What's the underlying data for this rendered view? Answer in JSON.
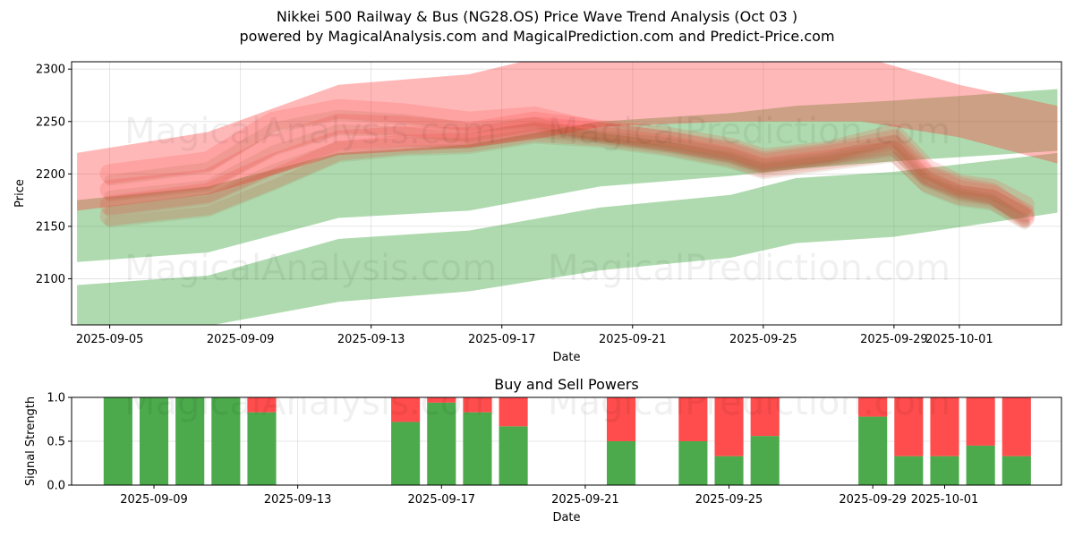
{
  "title": "Nikkei 500 Railway & Bus (NG28.OS) Price Wave Trend Analysis (Oct 03 )",
  "subtitle": "powered by MagicalAnalysis.com and MagicalPrediction.com and Predict-Price.com",
  "watermarks": [
    "MagicalAnalysis.com",
    "MagicalPrediction.com"
  ],
  "colors": {
    "bull": "#2e9e2e",
    "bear": "#ff3333",
    "buy_bar": "#4caa4c",
    "sell_bar": "#ff4c4c"
  },
  "chart_data": [
    {
      "type": "area",
      "xlabel": "Date",
      "ylabel": "Price",
      "ylim": [
        2056,
        2307
      ],
      "xlim": [
        "2025-09-03T20:00",
        "2025-10-04T03:00"
      ],
      "y_ticks": [
        2100,
        2150,
        2200,
        2250,
        2300
      ],
      "x_ticks": [
        "2025-09-05",
        "2025-09-09",
        "2025-09-13",
        "2025-09-17",
        "2025-09-21",
        "2025-09-25",
        "2025-09-29",
        "2025-10-01"
      ],
      "grid": true,
      "green_bands": [
        {
          "x": [
            "2025-09-04",
            "2025-09-08",
            "2025-09-12",
            "2025-09-16",
            "2025-09-20",
            "2025-09-24",
            "2025-09-26",
            "2025-09-29",
            "2025-10-04"
          ],
          "upper": [
            2175,
            2188,
            2220,
            2228,
            2250,
            2258,
            2265,
            2270,
            2281
          ],
          "lower": [
            2116,
            2125,
            2158,
            2165,
            2188,
            2198,
            2205,
            2212,
            2222
          ]
        },
        {
          "x": [
            "2025-09-04",
            "2025-09-08",
            "2025-09-12",
            "2025-09-16",
            "2025-09-20",
            "2025-09-24",
            "2025-09-26",
            "2025-09-29",
            "2025-10-04"
          ],
          "upper": [
            2094,
            2103,
            2138,
            2146,
            2168,
            2180,
            2196,
            2202,
            2220
          ],
          "lower": [
            2053,
            2055,
            2078,
            2088,
            2108,
            2120,
            2134,
            2140,
            2163
          ]
        }
      ],
      "red_bands": [
        {
          "x": [
            "2025-09-04",
            "2025-09-08",
            "2025-09-12",
            "2025-09-16",
            "2025-09-18",
            "2025-09-20",
            "2025-09-24",
            "2025-09-28",
            "2025-10-01",
            "2025-10-04"
          ],
          "upper": [
            2220,
            2240,
            2285,
            2295,
            2310,
            2312,
            2312,
            2312,
            2285,
            2265
          ],
          "lower": [
            2165,
            2180,
            2218,
            2225,
            2233,
            2245,
            2250,
            2250,
            2235,
            2210
          ]
        }
      ],
      "wave_lines": [
        {
          "x": [
            "2025-09-05",
            "2025-09-08",
            "2025-09-10",
            "2025-09-12",
            "2025-09-14",
            "2025-09-16",
            "2025-09-18",
            "2025-09-20",
            "2025-09-22",
            "2025-09-24",
            "2025-09-25",
            "2025-09-27",
            "2025-09-29",
            "2025-09-30",
            "2025-10-01",
            "2025-10-02",
            "2025-10-03"
          ],
          "y": [
            2200,
            2212,
            2250,
            2262,
            2258,
            2250,
            2255,
            2240,
            2232,
            2222,
            2212,
            2220,
            2233,
            2200,
            2188,
            2182,
            2160
          ]
        },
        {
          "x": [
            "2025-09-05",
            "2025-09-08",
            "2025-09-10",
            "2025-09-12",
            "2025-09-14",
            "2025-09-16",
            "2025-09-18",
            "2025-09-20",
            "2025-09-22",
            "2025-09-24",
            "2025-09-25",
            "2025-09-27",
            "2025-09-29",
            "2025-09-30",
            "2025-10-01",
            "2025-10-02",
            "2025-10-03"
          ],
          "y": [
            2185,
            2195,
            2228,
            2248,
            2246,
            2240,
            2250,
            2242,
            2236,
            2225,
            2215,
            2222,
            2238,
            2205,
            2190,
            2186,
            2170
          ]
        },
        {
          "x": [
            "2025-09-05",
            "2025-09-08",
            "2025-09-10",
            "2025-09-12",
            "2025-09-14",
            "2025-09-16",
            "2025-09-18",
            "2025-09-20",
            "2025-09-22",
            "2025-09-24",
            "2025-09-25",
            "2025-09-27",
            "2025-09-29",
            "2025-09-30",
            "2025-10-01",
            "2025-10-02",
            "2025-10-03"
          ],
          "y": [
            2170,
            2182,
            2210,
            2232,
            2236,
            2235,
            2245,
            2240,
            2232,
            2220,
            2210,
            2218,
            2228,
            2198,
            2185,
            2180,
            2163
          ]
        },
        {
          "x": [
            "2025-09-05",
            "2025-09-08",
            "2025-09-10",
            "2025-09-12",
            "2025-09-14",
            "2025-09-16",
            "2025-09-18",
            "2025-09-20",
            "2025-09-22",
            "2025-09-24",
            "2025-09-25",
            "2025-09-27",
            "2025-09-29",
            "2025-09-30",
            "2025-10-01",
            "2025-10-02",
            "2025-10-03"
          ],
          "y": [
            2160,
            2170,
            2195,
            2222,
            2228,
            2230,
            2240,
            2236,
            2228,
            2216,
            2206,
            2214,
            2222,
            2192,
            2180,
            2176,
            2158
          ]
        }
      ]
    },
    {
      "type": "bar",
      "title": "Buy and Sell Powers",
      "xlabel": "Date",
      "ylabel": "Signal Strength",
      "ylim": [
        0,
        1
      ],
      "y_ticks": [
        0.0,
        0.5,
        1.0
      ],
      "x_ticks": [
        "2025-09-09",
        "2025-09-13",
        "2025-09-17",
        "2025-09-21",
        "2025-09-25",
        "2025-09-29",
        "2025-10-01"
      ],
      "grid": true,
      "dates": [
        "2025-09-08",
        "2025-09-09",
        "2025-09-10",
        "2025-09-11",
        "2025-09-12",
        "2025-09-16",
        "2025-09-17",
        "2025-09-18",
        "2025-09-19",
        "2025-09-22",
        "2025-09-24",
        "2025-09-25",
        "2025-09-26",
        "2025-09-29",
        "2025-09-30",
        "2025-10-01",
        "2025-10-02",
        "2025-10-03"
      ],
      "series": [
        {
          "name": "Buy",
          "values": [
            1.0,
            1.0,
            1.0,
            1.0,
            0.83,
            0.72,
            0.94,
            0.83,
            0.67,
            0.5,
            0.5,
            0.33,
            0.56,
            0.78,
            0.33,
            0.33,
            0.45,
            0.33
          ]
        },
        {
          "name": "Sell",
          "values": [
            0.0,
            0.0,
            0.0,
            0.0,
            0.17,
            0.28,
            0.06,
            0.17,
            0.33,
            0.5,
            0.5,
            0.67,
            0.44,
            0.22,
            0.67,
            0.67,
            0.55,
            0.67
          ]
        }
      ]
    }
  ]
}
